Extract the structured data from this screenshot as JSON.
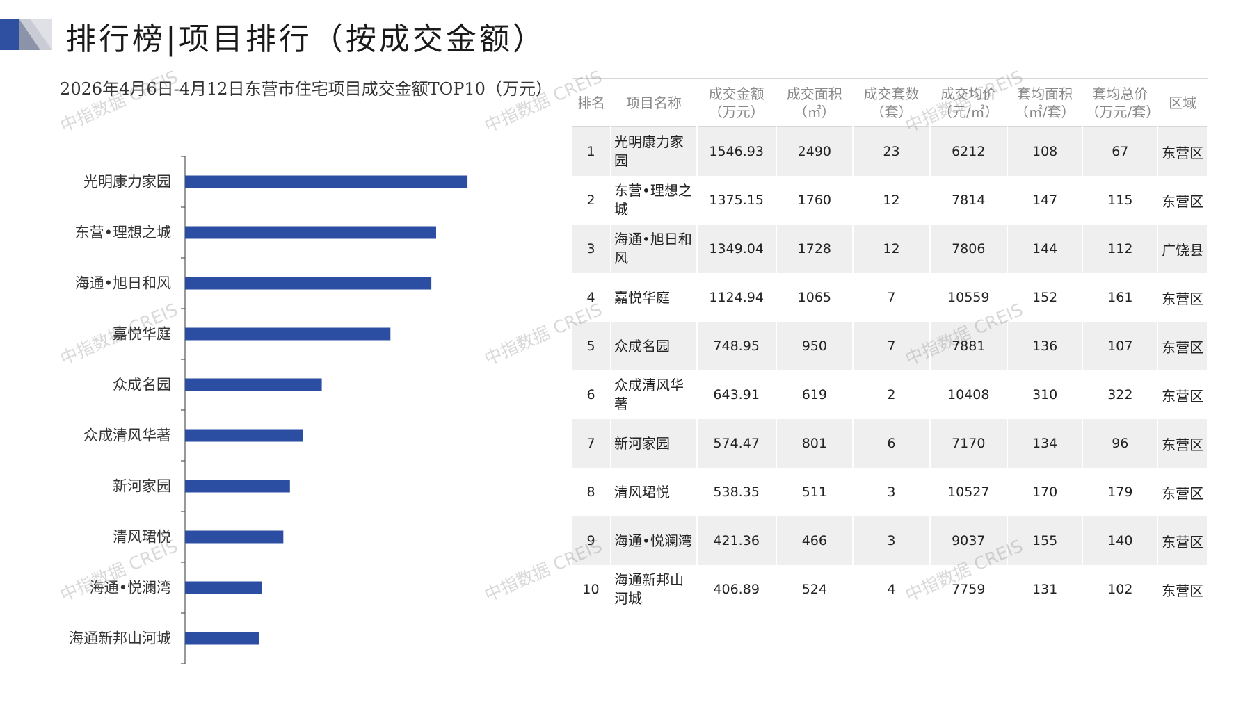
{
  "header": {
    "title": "排行榜|项目排行（按成交金额）"
  },
  "chart_data": {
    "type": "bar",
    "orientation": "horizontal",
    "title": "2026年4月6日-4月12日东营市住宅项目成交金额TOP10（万元）",
    "categories": [
      "光明康力家园",
      "东营•理想之城",
      "海通•旭日和风",
      "嘉悦华庭",
      "众成名园",
      "众成清风华著",
      "新河家园",
      "清风珺悦",
      "海通•悦澜湾",
      "海通新邦山河城"
    ],
    "values": [
      1546.93,
      1375.15,
      1349.04,
      1124.94,
      748.95,
      643.91,
      574.47,
      538.35,
      421.36,
      406.89
    ],
    "xlim": [
      0,
      2000
    ],
    "bar_color": "#2b4ea3",
    "grid": false,
    "legend": "none"
  },
  "table": {
    "headers": [
      "排名",
      "项目名称",
      "成交金额\n（万元）",
      "成交面积\n（㎡）",
      "成交套数\n（套）",
      "成交均价\n（元/㎡）",
      "套均面积\n（㎡/套）",
      "套均总价\n（万元/套）",
      "区域"
    ],
    "rows": [
      [
        "1",
        "光明康力家园",
        "1546.93",
        "2490",
        "23",
        "6212",
        "108",
        "67",
        "东营区"
      ],
      [
        "2",
        "东营•理想之城",
        "1375.15",
        "1760",
        "12",
        "7814",
        "147",
        "115",
        "东营区"
      ],
      [
        "3",
        "海通•旭日和风",
        "1349.04",
        "1728",
        "12",
        "7806",
        "144",
        "112",
        "广饶县"
      ],
      [
        "4",
        "嘉悦华庭",
        "1124.94",
        "1065",
        "7",
        "10559",
        "152",
        "161",
        "东营区"
      ],
      [
        "5",
        "众成名园",
        "748.95",
        "950",
        "7",
        "7881",
        "136",
        "107",
        "东营区"
      ],
      [
        "6",
        "众成清风华著",
        "643.91",
        "619",
        "2",
        "10408",
        "310",
        "322",
        "东营区"
      ],
      [
        "7",
        "新河家园",
        "574.47",
        "801",
        "6",
        "7170",
        "134",
        "96",
        "东营区"
      ],
      [
        "8",
        "清风珺悦",
        "538.35",
        "511",
        "3",
        "10527",
        "170",
        "179",
        "东营区"
      ],
      [
        "9",
        "海通•悦澜湾",
        "421.36",
        "466",
        "3",
        "9037",
        "155",
        "140",
        "东营区"
      ],
      [
        "10",
        "海通新邦山河城",
        "406.89",
        "524",
        "4",
        "7759",
        "131",
        "102",
        "东营区"
      ]
    ]
  },
  "watermark": {
    "text": "中指数据 CREIS"
  },
  "colors": {
    "accent": "#2b4ea3",
    "row_alt": "#efefef"
  }
}
